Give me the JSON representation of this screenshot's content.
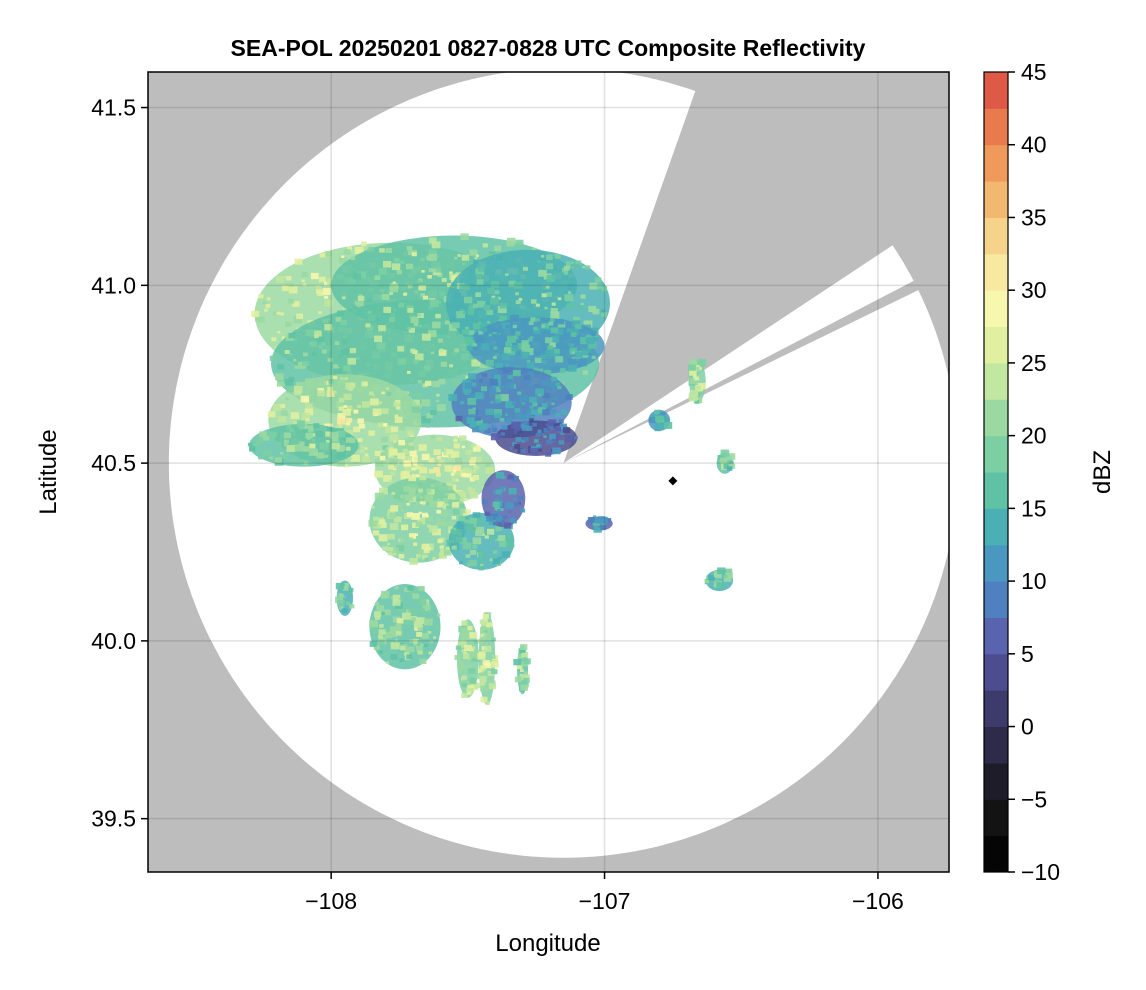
{
  "chart_data": {
    "type": "heatmap",
    "title": "SEA-POL 20250201 0827-0828 UTC Composite Reflectivity",
    "xlabel": "Longitude",
    "ylabel": "Latitude",
    "xlim": [
      -108.67,
      -105.74
    ],
    "ylim": [
      39.35,
      41.6
    ],
    "x_ticks": [
      -108,
      -107,
      -106
    ],
    "x_tick_labels": [
      "−108",
      "−107",
      "−106"
    ],
    "y_ticks": [
      39.5,
      40.0,
      40.5,
      41.0,
      41.5
    ],
    "y_tick_labels": [
      "39.5",
      "40.0",
      "40.5",
      "41.0",
      "41.5"
    ],
    "grid": true,
    "background_color": "#bdbdbd",
    "coverage_color": "#ffffff",
    "radar": {
      "center_lon": -107.15,
      "center_lat": 40.5,
      "range_lat_deg": 1.11,
      "blocked_sectors": [
        {
          "from_deg": 20,
          "to_deg": 56
        },
        {
          "from_deg": 63,
          "to_deg": 63.5
        }
      ]
    },
    "marker": {
      "lon": -106.75,
      "lat": 40.45,
      "shape": "diamond",
      "color": "#000000"
    },
    "colorbar": {
      "label": "dBZ",
      "min": -10,
      "max": 45,
      "step": 2.5,
      "ticks": [
        -10,
        -5,
        0,
        5,
        10,
        15,
        20,
        25,
        30,
        35,
        40,
        45
      ],
      "tick_labels": [
        "−10",
        "−5",
        "0",
        "5",
        "10",
        "15",
        "20",
        "25",
        "30",
        "35",
        "40",
        "45"
      ],
      "colors": [
        "#050505",
        "#131313",
        "#1f1c2a",
        "#2e2a4a",
        "#3d3a6c",
        "#4c4c8e",
        "#5a63ad",
        "#4f80bf",
        "#4a98c0",
        "#4ab0b4",
        "#5fc2a4",
        "#7ccfa3",
        "#9bd9a2",
        "#c1e7a0",
        "#e0f0a0",
        "#f7f7ae",
        "#f9e8a0",
        "#f6d38b",
        "#f3b870",
        "#ef995a",
        "#e97a4d",
        "#df5a46",
        "#cc3d49",
        "#b5285a",
        "#d34a88",
        "#e37ab0",
        "#e8a3cc",
        "#c896c5",
        "#a57ab5",
        "#84599f",
        "#642f7e",
        "#4a0f5c"
      ]
    },
    "cells": [
      {
        "lon": -107.78,
        "lat": 40.92,
        "dbz": 24,
        "rlon": 0.5,
        "rlat": 0.2,
        "n": 240
      },
      {
        "lon": -107.55,
        "lat": 41.0,
        "dbz": 20,
        "rlon": 0.45,
        "rlat": 0.14,
        "n": 170
      },
      {
        "lon": -107.62,
        "lat": 40.78,
        "dbz": 19,
        "rlon": 0.6,
        "rlat": 0.18,
        "n": 230
      },
      {
        "lon": -107.28,
        "lat": 40.95,
        "dbz": 17,
        "rlon": 0.3,
        "rlat": 0.15,
        "n": 130
      },
      {
        "lon": -107.25,
        "lat": 40.83,
        "dbz": 14,
        "rlon": 0.25,
        "rlat": 0.08,
        "n": 120
      },
      {
        "lon": -107.34,
        "lat": 40.67,
        "dbz": 11,
        "rlon": 0.22,
        "rlat": 0.1,
        "n": 110
      },
      {
        "lon": -107.25,
        "lat": 40.57,
        "dbz": 7,
        "rlon": 0.15,
        "rlat": 0.05,
        "n": 60
      },
      {
        "lon": -107.95,
        "lat": 40.62,
        "dbz": 23,
        "rlon": 0.28,
        "rlat": 0.13,
        "n": 160
      },
      {
        "lon": -108.1,
        "lat": 40.55,
        "dbz": 19,
        "rlon": 0.2,
        "rlat": 0.06,
        "n": 70
      },
      {
        "lon": -107.62,
        "lat": 40.48,
        "dbz": 24,
        "rlon": 0.22,
        "rlat": 0.1,
        "n": 140
      },
      {
        "lon": -107.68,
        "lat": 40.34,
        "dbz": 22,
        "rlon": 0.18,
        "rlat": 0.12,
        "n": 130
      },
      {
        "lon": -107.45,
        "lat": 40.28,
        "dbz": 17,
        "rlon": 0.12,
        "rlat": 0.08,
        "n": 60
      },
      {
        "lon": -107.37,
        "lat": 40.4,
        "dbz": 10,
        "rlon": 0.08,
        "rlat": 0.08,
        "n": 40
      },
      {
        "lon": -107.73,
        "lat": 40.04,
        "dbz": 19,
        "rlon": 0.13,
        "rlat": 0.12,
        "n": 110
      },
      {
        "lon": -107.95,
        "lat": 40.12,
        "dbz": 17,
        "rlon": 0.03,
        "rlat": 0.05,
        "n": 15
      },
      {
        "lon": -107.5,
        "lat": 39.95,
        "dbz": 21,
        "rlon": 0.04,
        "rlat": 0.11,
        "n": 45
      },
      {
        "lon": -107.43,
        "lat": 39.95,
        "dbz": 22,
        "rlon": 0.03,
        "rlat": 0.13,
        "n": 45
      },
      {
        "lon": -107.3,
        "lat": 39.92,
        "dbz": 20,
        "rlon": 0.02,
        "rlat": 0.07,
        "n": 20
      },
      {
        "lon": -106.66,
        "lat": 40.73,
        "dbz": 21,
        "rlon": 0.03,
        "rlat": 0.06,
        "n": 25
      },
      {
        "lon": -106.58,
        "lat": 40.17,
        "dbz": 17,
        "rlon": 0.05,
        "rlat": 0.03,
        "n": 20
      },
      {
        "lon": -107.02,
        "lat": 40.33,
        "dbz": 10,
        "rlon": 0.05,
        "rlat": 0.02,
        "n": 15
      },
      {
        "lon": -106.8,
        "lat": 40.62,
        "dbz": 13,
        "rlon": 0.04,
        "rlat": 0.03,
        "n": 15
      },
      {
        "lon": -106.56,
        "lat": 40.5,
        "dbz": 18,
        "rlon": 0.03,
        "rlat": 0.03,
        "n": 12
      }
    ]
  }
}
